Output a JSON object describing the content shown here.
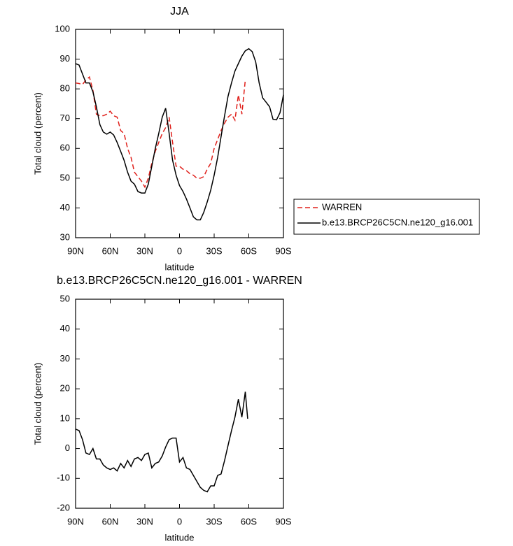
{
  "chart_data": [
    {
      "type": "line",
      "title": "JJA",
      "xlabel": "latitude",
      "ylabel": "Total cloud (percent)",
      "xlim": [
        90,
        -90
      ],
      "ylim": [
        30,
        100
      ],
      "xticks": [
        {
          "value": 90,
          "label": "90N"
        },
        {
          "value": 60,
          "label": "60N"
        },
        {
          "value": 30,
          "label": "30N"
        },
        0,
        {
          "value": -30,
          "label": "30S"
        },
        {
          "value": -60,
          "label": "60S"
        },
        {
          "value": -90,
          "label": "90S"
        }
      ],
      "yticks": [
        30,
        40,
        50,
        60,
        70,
        80,
        90,
        100
      ],
      "legend": "right",
      "series": [
        {
          "name": "WARREN",
          "color": "#e0201b",
          "linestyle": "dashed",
          "x": [
            90,
            87,
            84,
            81,
            78,
            75,
            72,
            69,
            66,
            63,
            60,
            57,
            54,
            51,
            48,
            45,
            42,
            39,
            36,
            33,
            30,
            27,
            24,
            21,
            18,
            15,
            12,
            9,
            6,
            3,
            0,
            -3,
            -6,
            -9,
            -12,
            -15,
            -18,
            -21,
            -24,
            -27,
            -30,
            -33,
            -36,
            -39,
            -42,
            -45,
            -48,
            -51,
            -54,
            -57
          ],
          "values": [
            82,
            81.8,
            81.5,
            83,
            84,
            79.5,
            71.5,
            71,
            71,
            71.5,
            72.5,
            71,
            70.5,
            66,
            65,
            60,
            57,
            52,
            50.5,
            49,
            47,
            50,
            55,
            59,
            62,
            65,
            67,
            70.5,
            62,
            54,
            54,
            53,
            52.5,
            51.5,
            51,
            50,
            50,
            50.5,
            53,
            55,
            60,
            63,
            66,
            68.5,
            70.5,
            71.5,
            69.5,
            78,
            71.5,
            83
          ]
        },
        {
          "name": "b.e13.BRCP26C5CN.ne120_g16.001",
          "color": "#000000",
          "linestyle": "solid",
          "x": [
            90,
            87,
            84,
            81,
            78,
            75,
            72,
            69,
            66,
            63,
            60,
            57,
            54,
            51,
            48,
            45,
            42,
            39,
            36,
            33,
            30,
            27,
            24,
            21,
            18,
            15,
            12,
            9,
            6,
            3,
            0,
            -3,
            -6,
            -9,
            -12,
            -15,
            -18,
            -21,
            -24,
            -27,
            -30,
            -33,
            -36,
            -39,
            -42,
            -45,
            -48,
            -51,
            -54,
            -57,
            -60,
            -63,
            -66,
            -69,
            -72,
            -75,
            -78,
            -81,
            -84,
            -87,
            -90
          ],
          "values": [
            88.5,
            88,
            85,
            82,
            82,
            79,
            74,
            68,
            65.5,
            64.8,
            65.5,
            64.5,
            62,
            59,
            56,
            52,
            49,
            48,
            45.5,
            45,
            45,
            48,
            54,
            60,
            65,
            70.5,
            73.5,
            65,
            56,
            51,
            47.5,
            45.5,
            43,
            40,
            37,
            36,
            36,
            38.5,
            42,
            46,
            51,
            57,
            64,
            71,
            77.5,
            82,
            86,
            88.5,
            91,
            92.8,
            93.5,
            92.5,
            89,
            82,
            77,
            75.5,
            74,
            69.8,
            69.6,
            72,
            78
          ]
        }
      ]
    },
    {
      "type": "line",
      "title": "b.e13.BRCP26C5CN.ne120_g16.001 - WARREN",
      "xlabel": "latitude",
      "ylabel": "Total cloud (percent)",
      "xlim": [
        90,
        -90
      ],
      "ylim": [
        -20,
        50
      ],
      "xticks": [
        {
          "value": 90,
          "label": "90N"
        },
        {
          "value": 60,
          "label": "60N"
        },
        {
          "value": 30,
          "label": "30N"
        },
        0,
        {
          "value": -30,
          "label": "30S"
        },
        {
          "value": -60,
          "label": "60S"
        },
        {
          "value": -90,
          "label": "90S"
        }
      ],
      "yticks": [
        -20,
        -10,
        0,
        10,
        20,
        30,
        40,
        50
      ],
      "series": [
        {
          "color": "#000000",
          "linestyle": "solid",
          "x": [
            90,
            87,
            84,
            81,
            78,
            75,
            72,
            69,
            66,
            63,
            60,
            57,
            54,
            51,
            48,
            45,
            42,
            39,
            36,
            33,
            30,
            27,
            24,
            21,
            18,
            15,
            12,
            9,
            6,
            3,
            0,
            -3,
            -6,
            -9,
            -12,
            -15,
            -18,
            -21,
            -24,
            -27,
            -30,
            -33,
            -36,
            -39,
            -42,
            -45,
            -48,
            -51,
            -54,
            -57,
            -59
          ],
          "values": [
            6.5,
            6,
            3,
            -1.5,
            -2,
            0,
            -3.5,
            -3.5,
            -5.5,
            -6.5,
            -7,
            -6.5,
            -7.5,
            -5,
            -6.5,
            -4,
            -6,
            -3.5,
            -3,
            -4,
            -2,
            -1.5,
            -6.5,
            -5,
            -4.5,
            -2.5,
            0.5,
            3,
            3.5,
            3.5,
            -4.5,
            -3,
            -6.5,
            -7,
            -9,
            -11,
            -13,
            -14,
            -14.5,
            -12.5,
            -12.5,
            -9,
            -8.5,
            -4,
            1,
            6,
            10.5,
            16.5,
            10.5,
            19,
            10
          ]
        }
      ]
    }
  ]
}
